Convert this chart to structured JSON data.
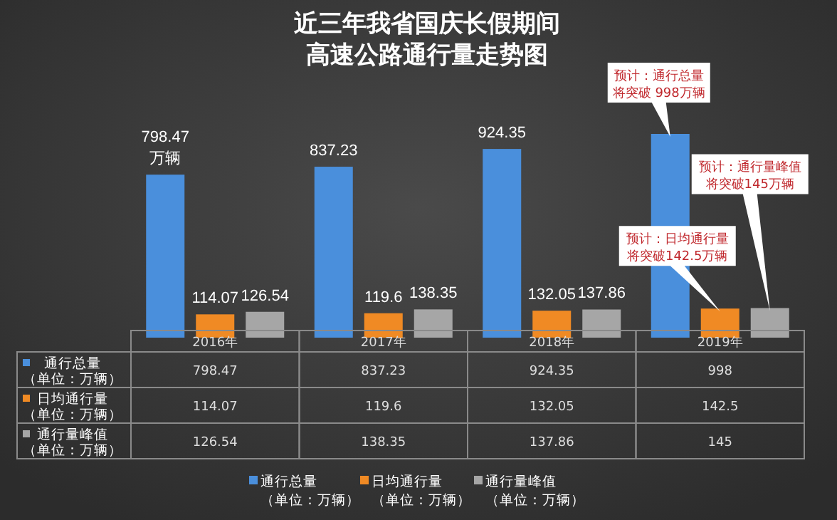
{
  "chart_data": [
    {
      "type": "bar",
      "title": "近三年我省国庆长假期间高速公路通行量走势图",
      "categories": [
        null,
        null,
        null,
        null
      ],
      "series": [
        {
          "name": "通行总量（单位：万辆）",
          "color": "#4a8fdc",
          "values": [
            798.47,
            837.23,
            924.35,
            998
          ],
          "value_labels": [
            "798.47\n万辆",
            "837.23",
            "924.35",
            null
          ]
        },
        {
          "name": "日均通行量（单位：万辆）",
          "color": "#f08a24",
          "values": [
            114.07,
            119.6,
            132.05,
            142.5
          ],
          "value_labels": [
            "114.07",
            "119.6",
            "132.05",
            null
          ]
        },
        {
          "name": "通行量峰值（单位：万辆）",
          "color": "#a6a6a6",
          "values": [
            126.54,
            138.35,
            137.86,
            145
          ],
          "value_labels": [
            "126.54",
            "138.35",
            "137.86",
            null
          ]
        }
      ],
      "annotations": [
        "预计：通行总量将突破 998万辆",
        "预计：通行量峰值将突破145万辆",
        "预计：日均通行量将突破142.5万辆"
      ],
      "legend": "bottom"
    },
    {
      "type": "heatmap",
      "data_labels": true,
      "categories": [
        "2016年",
        "2017年",
        "2018年",
        "2019年"
      ],
      "y_categories": [
        "通行总量（单位：万辆）",
        "日均通行量（单位：万辆）",
        "通行量峰值（单位：万辆）"
      ],
      "colors": [
        "#4a8fdc",
        "#f08a24",
        "#a6a6a6"
      ],
      "cells": [
        [
          798.47,
          837.23,
          924.35,
          998
        ],
        [
          114.07,
          119.6,
          132.05,
          142.5
        ],
        [
          126.54,
          138.35,
          137.86,
          145
        ]
      ]
    }
  ]
}
